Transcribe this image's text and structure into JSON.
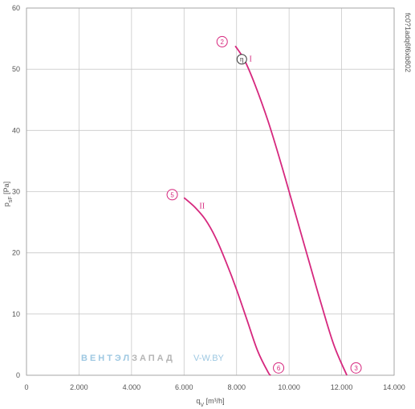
{
  "chart_data": {
    "type": "line",
    "title": "",
    "xlabel_main": "q",
    "xlabel_sub": "V",
    "xlabel_unit": " [m³/h]",
    "ylabel_main": "p",
    "ylabel_sub": "sF",
    "ylabel_unit": " [Pa]",
    "xlim": [
      0,
      14000
    ],
    "ylim": [
      0,
      60
    ],
    "x_ticks": [
      0,
      2000,
      4000,
      6000,
      8000,
      10000,
      12000,
      14000
    ],
    "x_tick_labels": [
      "0",
      "2.000",
      "4.000",
      "6.000",
      "8.000",
      "10.000",
      "12.000",
      "14.000"
    ],
    "y_ticks": [
      0,
      10,
      20,
      30,
      40,
      50,
      60
    ],
    "y_tick_labels": [
      "0",
      "10",
      "20",
      "30",
      "40",
      "50",
      "60"
    ],
    "grid": true,
    "series": [
      {
        "name": "I",
        "x": [
          7950,
          8300,
          8700,
          9200,
          9700,
          10200,
          10700,
          11200,
          11700,
          12200
        ],
        "y": [
          53.8,
          51.5,
          47.5,
          41.5,
          34.5,
          27.0,
          19.5,
          12.0,
          5.0,
          0
        ]
      },
      {
        "name": "II",
        "x": [
          6000,
          6400,
          6800,
          7200,
          7600,
          8000,
          8400,
          8800,
          9200,
          9300
        ],
        "y": [
          29.0,
          27.5,
          25.5,
          22.5,
          18.5,
          14.0,
          9.0,
          4.0,
          0.5,
          0
        ]
      }
    ],
    "markers": [
      {
        "label": "2",
        "x": 7450,
        "y": 54.5
      },
      {
        "label": "5",
        "x": 5550,
        "y": 29.5
      },
      {
        "label": "6",
        "x": 9600,
        "y": 1.2
      },
      {
        "label": "3",
        "x": 12550,
        "y": 1.2
      }
    ],
    "eta_marker": {
      "label": "η",
      "x": 8200,
      "y": 51.5
    },
    "code_label": "fc0?1adq6f6xb802",
    "watermark": {
      "part1": "ВЕНТЭЛ",
      "part2": "ЗАПАД",
      "part3": "V-W.BY"
    },
    "colors": {
      "curve": "#d6287e",
      "grid": "#c9c9c9",
      "watermark_blue": "#9ec8e2",
      "watermark_gray": "#b5b5b5"
    }
  }
}
